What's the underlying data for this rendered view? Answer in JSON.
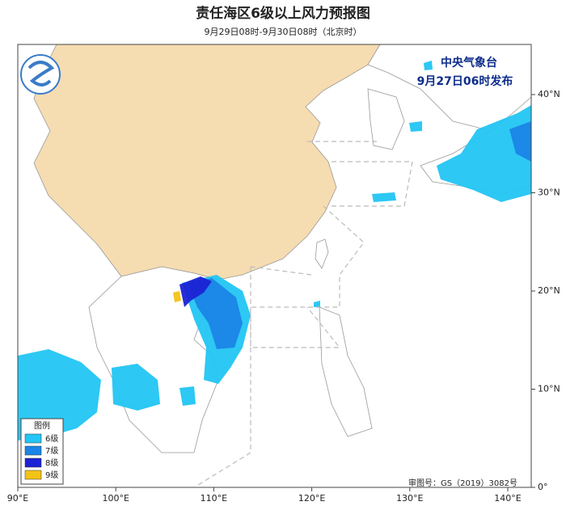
{
  "header": {
    "title": "责任海区6级以上风力预报图",
    "subtitle": "9月29日08时-9月30日08时（北京时）"
  },
  "issuer": {
    "name": "中央气象台",
    "time": "9月27日06时发布"
  },
  "legend": {
    "title": "图例",
    "items": [
      {
        "label": "6级",
        "color": "#22c5f3"
      },
      {
        "label": "7级",
        "color": "#1b85e6"
      },
      {
        "label": "8级",
        "color": "#1b22d4"
      },
      {
        "label": "9级",
        "color": "#f3c316"
      }
    ]
  },
  "axes": {
    "lon_labels": [
      "90°E",
      "100°E",
      "110°E",
      "120°E",
      "130°E",
      "140°E"
    ],
    "lat_labels": [
      "0°",
      "10°N",
      "20°N",
      "30°N",
      "40°N"
    ]
  },
  "footer": {
    "approval": "审图号：GS（2019）3082号"
  }
}
